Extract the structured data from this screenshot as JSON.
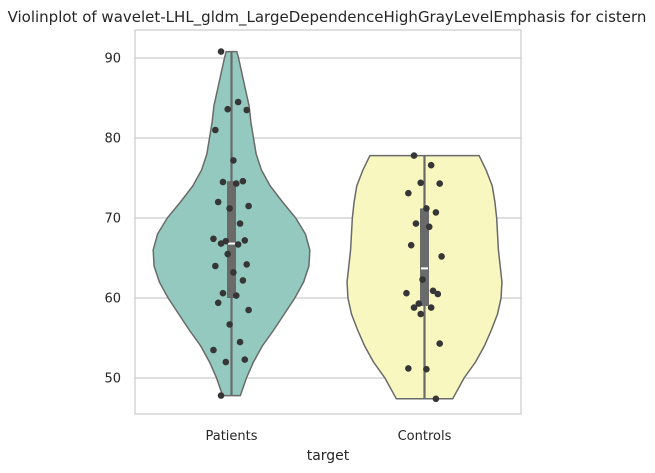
{
  "chart_data": {
    "type": "violin",
    "title": "Violinplot of wavelet-LHL_gldm_LargeDependenceHighGrayLevelEmphasis for cistern",
    "xlabel": "target",
    "ylabel": "",
    "categories": [
      "Patients",
      "Controls"
    ],
    "y_ticks": [
      50,
      60,
      70,
      80,
      90
    ],
    "y_tick_labels": [
      "50",
      "60",
      "70",
      "80",
      "90"
    ],
    "ylim": [
      45.5,
      93.5
    ],
    "grid": true,
    "colors": {
      "Patients": "#94c9bf",
      "Controls": "#f7f7bf",
      "outline": "#6a6a6a",
      "points": "#363636",
      "grid": "#cccccc"
    },
    "series": [
      {
        "category": "Patients",
        "min": 47.8,
        "max": 90.8,
        "q1": 60.0,
        "median": 66.8,
        "q3": 74.6,
        "density": [
          [
            47.8,
            0.1
          ],
          [
            50,
            0.17
          ],
          [
            52,
            0.25
          ],
          [
            54,
            0.35
          ],
          [
            56,
            0.48
          ],
          [
            58,
            0.6
          ],
          [
            60,
            0.72
          ],
          [
            62,
            0.82
          ],
          [
            64,
            0.88
          ],
          [
            66,
            0.89
          ],
          [
            68,
            0.84
          ],
          [
            70,
            0.73
          ],
          [
            72,
            0.58
          ],
          [
            74,
            0.44
          ],
          [
            76,
            0.34
          ],
          [
            78,
            0.28
          ],
          [
            80,
            0.25
          ],
          [
            82,
            0.22
          ],
          [
            84,
            0.2
          ],
          [
            86,
            0.16
          ],
          [
            88,
            0.12
          ],
          [
            90,
            0.08
          ],
          [
            90.8,
            0.06
          ]
        ],
        "points": [
          90.8,
          84.5,
          83.6,
          83.5,
          81.0,
          77.2,
          74.6,
          74.5,
          74.3,
          72.0,
          71.5,
          71.2,
          69.3,
          67.4,
          67.2,
          67.1,
          66.8,
          66.7,
          65.5,
          64.2,
          64.0,
          63.2,
          62.2,
          60.6,
          60.3,
          59.4,
          58.5,
          56.7,
          54.5,
          53.5,
          52.3,
          52.0,
          47.8
        ]
      },
      {
        "category": "Controls",
        "min": 47.4,
        "max": 77.8,
        "q1": 59.0,
        "median": 63.7,
        "q3": 71.2,
        "density": [
          [
            47.4,
            0.32
          ],
          [
            50,
            0.45
          ],
          [
            52,
            0.58
          ],
          [
            54,
            0.68
          ],
          [
            56,
            0.76
          ],
          [
            58,
            0.83
          ],
          [
            60,
            0.87
          ],
          [
            62,
            0.88
          ],
          [
            64,
            0.86
          ],
          [
            66,
            0.84
          ],
          [
            68,
            0.83
          ],
          [
            70,
            0.82
          ],
          [
            72,
            0.8
          ],
          [
            74,
            0.77
          ],
          [
            76,
            0.7
          ],
          [
            77.8,
            0.62
          ]
        ],
        "points": [
          77.8,
          76.6,
          74.4,
          74.3,
          73.1,
          71.2,
          70.7,
          69.3,
          68.9,
          66.6,
          65.2,
          62.3,
          60.9,
          60.6,
          60.5,
          59.3,
          58.8,
          58.8,
          58.0,
          54.3,
          51.2,
          51.1,
          47.4
        ]
      }
    ]
  }
}
